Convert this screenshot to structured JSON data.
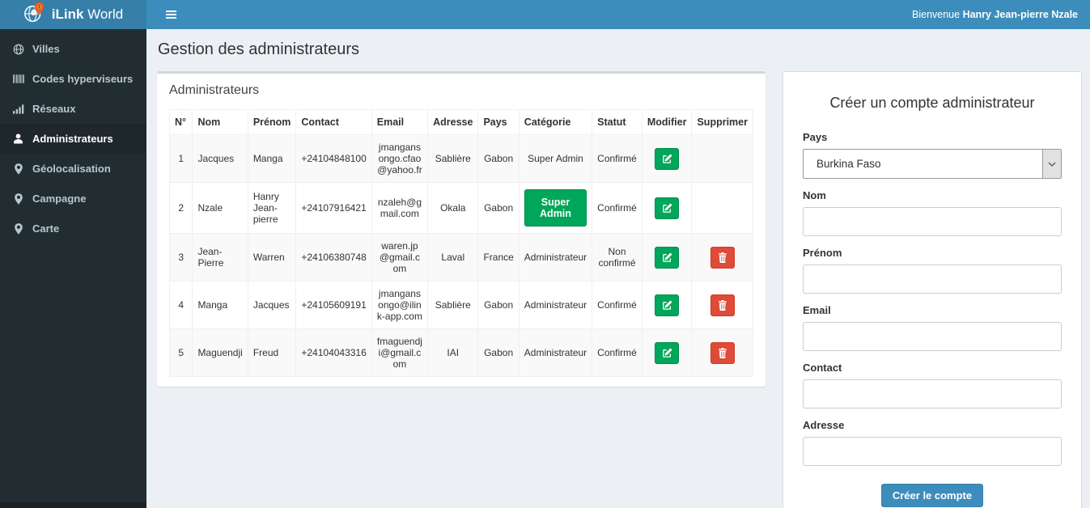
{
  "header": {
    "brand_bold": "iLink",
    "brand_regular": "World",
    "welcome_prefix": "Bienvenue ",
    "welcome_name": "Hanry Jean-pierre Nzale"
  },
  "sidebar": {
    "items": [
      {
        "label": "Villes",
        "icon": "globe-icon",
        "active": false
      },
      {
        "label": "Codes hyperviseurs",
        "icon": "barcode-icon",
        "active": false
      },
      {
        "label": "Réseaux",
        "icon": "signal-icon",
        "active": false
      },
      {
        "label": "Administrateurs",
        "icon": "user-icon",
        "active": true
      },
      {
        "label": "Géolocalisation",
        "icon": "map-marker-icon",
        "active": false
      },
      {
        "label": "Campagne",
        "icon": "map-marker-icon",
        "active": false
      },
      {
        "label": "Carte",
        "icon": "map-marker-icon",
        "active": false
      }
    ]
  },
  "page": {
    "title": "Gestion des administrateurs"
  },
  "admin_panel": {
    "title": "Administrateurs",
    "table": {
      "headers": [
        "N°",
        "Nom",
        "Prénom",
        "Contact",
        "Email",
        "Adresse",
        "Pays",
        "Catégorie",
        "Statut",
        "Modifier",
        "Supprimer"
      ],
      "rows": [
        {
          "num": "1",
          "nom": "Jacques",
          "prenom": "Manga",
          "contact": "+24104848100",
          "email": "jmangansongo.cfao@yahoo.fr",
          "adresse": "Sablière",
          "pays": "Gabon",
          "categorie": "Super Admin",
          "categorie_badge": false,
          "statut": "Confirmé",
          "can_delete": false
        },
        {
          "num": "2",
          "nom": "Nzale",
          "prenom": "Hanry Jean-pierre",
          "contact": "+24107916421",
          "email": "nzaleh@gmail.com",
          "adresse": "Okala",
          "pays": "Gabon",
          "categorie": "Super Admin",
          "categorie_badge": true,
          "statut": "Confirmé",
          "can_delete": false
        },
        {
          "num": "3",
          "nom": "Jean-Pierre",
          "prenom": "Warren",
          "contact": "+24106380748",
          "email": "waren.jp@gmail.com",
          "adresse": "Laval",
          "pays": "France",
          "categorie": "Administrateur",
          "categorie_badge": false,
          "statut": "Non confirmé",
          "can_delete": true
        },
        {
          "num": "4",
          "nom": "Manga",
          "prenom": "Jacques",
          "contact": "+24105609191",
          "email": "jmangansongo@ilink-app.com",
          "adresse": "Sablière",
          "pays": "Gabon",
          "categorie": "Administrateur",
          "categorie_badge": false,
          "statut": "Confirmé",
          "can_delete": true
        },
        {
          "num": "5",
          "nom": "Maguendji",
          "prenom": "Freud",
          "contact": "+24104043316",
          "email": "fmaguendji@gmail.com",
          "adresse": "IAI",
          "pays": "Gabon",
          "categorie": "Administrateur",
          "categorie_badge": false,
          "statut": "Confirmé",
          "can_delete": true
        }
      ]
    }
  },
  "create_form": {
    "title": "Créer un compte administrateur",
    "fields": [
      {
        "label": "Pays",
        "type": "select",
        "value": "Burkina Faso"
      },
      {
        "label": "Nom",
        "type": "input",
        "value": ""
      },
      {
        "label": "Prénom",
        "type": "input",
        "value": ""
      },
      {
        "label": "Email",
        "type": "input",
        "value": ""
      },
      {
        "label": "Contact",
        "type": "input",
        "value": ""
      },
      {
        "label": "Adresse",
        "type": "input",
        "value": ""
      }
    ],
    "submit_label": "Créer le compte"
  },
  "colors": {
    "navbar": "#3c8dbc",
    "brand_bg": "#367fa9",
    "sidebar_bg": "#222d32",
    "sidebar_active_bg": "#1e282c",
    "success_green": "#00a65a",
    "danger_red": "#dd4b39",
    "content_bg": "#ecf0f5"
  }
}
